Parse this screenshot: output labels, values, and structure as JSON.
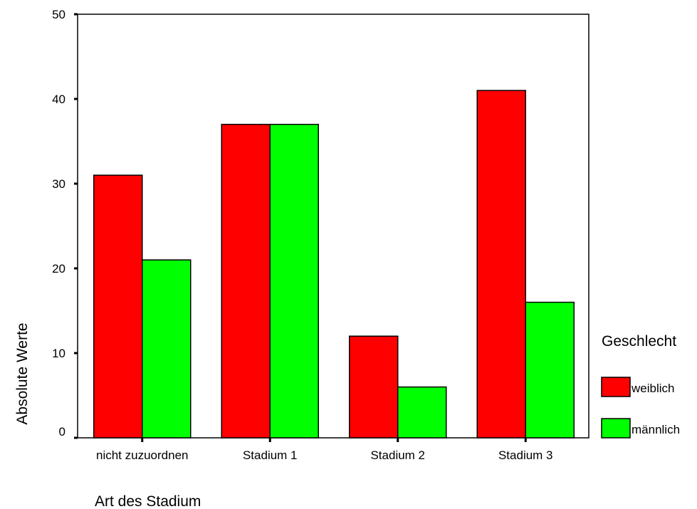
{
  "chart_data": {
    "type": "bar",
    "categories": [
      "nicht zuzuordnen",
      "Stadium 1",
      "Stadium 2",
      "Stadium 3"
    ],
    "series": [
      {
        "name": "weiblich",
        "values": [
          31,
          37,
          12,
          41
        ],
        "color": "#ff0000"
      },
      {
        "name": "männlich",
        "values": [
          21,
          37,
          6,
          16
        ],
        "color": "#00ff00"
      }
    ],
    "y_ticks": [
      "0",
      "10",
      "20",
      "30",
      "40",
      "50"
    ],
    "ylim": [
      0,
      50
    ],
    "xlabel": "Art des Stadium",
    "ylabel": "Absolute Werte",
    "legend_title": "Geschlecht",
    "legend_position": "right",
    "grid": false
  }
}
